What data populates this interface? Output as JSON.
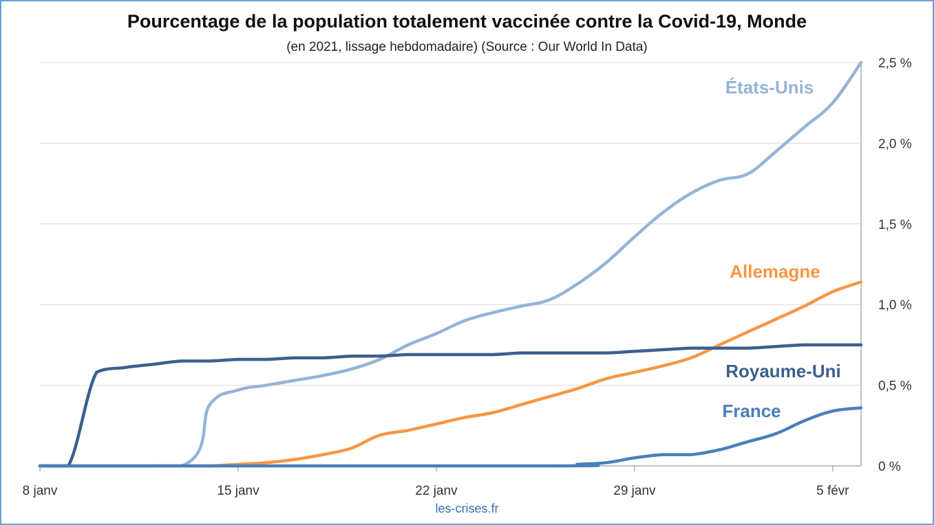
{
  "chart_data": {
    "type": "line",
    "title": "Pourcentage de la population totalement vaccinée contre la Covid-19, Monde",
    "subtitle": "(en 2021, lissage hebdomadaire) (Source : Our World In Data)",
    "source_footer": "les-crises.fr",
    "x_ticks": [
      "8 janv",
      "15 janv",
      "22 janv",
      "29 janv",
      "5 févr"
    ],
    "y_ticks": [
      "0 %",
      "0,5 %",
      "1,0 %",
      "1,5 %",
      "2,0 %",
      "2,5 %"
    ],
    "xlim": [
      "2021-01-08",
      "2021-02-06"
    ],
    "ylim": [
      0,
      2.5
    ],
    "grid": "horizontal",
    "y_axis_side": "right",
    "series": [
      {
        "name": "États-Unis",
        "color": "#95b3d7",
        "points": [
          [
            "2021-01-08",
            0
          ],
          [
            "2021-01-13",
            0
          ],
          [
            "2021-01-14",
            0.38
          ],
          [
            "2021-01-15",
            0.47
          ],
          [
            "2021-01-16",
            0.5
          ],
          [
            "2021-01-17",
            0.53
          ],
          [
            "2021-01-18",
            0.56
          ],
          [
            "2021-01-19",
            0.6
          ],
          [
            "2021-01-20",
            0.66
          ],
          [
            "2021-01-21",
            0.75
          ],
          [
            "2021-01-22",
            0.82
          ],
          [
            "2021-01-23",
            0.9
          ],
          [
            "2021-01-24",
            0.95
          ],
          [
            "2021-01-25",
            0.99
          ],
          [
            "2021-01-26",
            1.03
          ],
          [
            "2021-01-27",
            1.13
          ],
          [
            "2021-01-28",
            1.26
          ],
          [
            "2021-01-29",
            1.42
          ],
          [
            "2021-01-30",
            1.57
          ],
          [
            "2021-01-31",
            1.69
          ],
          [
            "2021-02-01",
            1.77
          ],
          [
            "2021-02-02",
            1.81
          ],
          [
            "2021-02-03",
            1.95
          ],
          [
            "2021-02-04",
            2.1
          ],
          [
            "2021-02-05",
            2.25
          ],
          [
            "2021-02-06",
            2.5
          ]
        ]
      },
      {
        "name": "Allemagne",
        "color": "#f79646",
        "points": [
          [
            "2021-01-12",
            0
          ],
          [
            "2021-01-13",
            0
          ],
          [
            "2021-01-14",
            0
          ],
          [
            "2021-01-15",
            0.01
          ],
          [
            "2021-01-16",
            0.02
          ],
          [
            "2021-01-17",
            0.04
          ],
          [
            "2021-01-18",
            0.07
          ],
          [
            "2021-01-19",
            0.11
          ],
          [
            "2021-01-20",
            0.19
          ],
          [
            "2021-01-21",
            0.22
          ],
          [
            "2021-01-22",
            0.26
          ],
          [
            "2021-01-23",
            0.3
          ],
          [
            "2021-01-24",
            0.33
          ],
          [
            "2021-01-25",
            0.38
          ],
          [
            "2021-01-26",
            0.43
          ],
          [
            "2021-01-27",
            0.48
          ],
          [
            "2021-01-28",
            0.54
          ],
          [
            "2021-01-29",
            0.58
          ],
          [
            "2021-01-30",
            0.62
          ],
          [
            "2021-01-31",
            0.67
          ],
          [
            "2021-02-01",
            0.75
          ],
          [
            "2021-02-02",
            0.83
          ],
          [
            "2021-02-03",
            0.91
          ],
          [
            "2021-02-04",
            0.99
          ],
          [
            "2021-02-05",
            1.08
          ],
          [
            "2021-02-06",
            1.14
          ]
        ]
      },
      {
        "name": "Royaume-Uni",
        "color": "#3b5f8f",
        "points": [
          [
            "2021-01-08",
            0
          ],
          [
            "2021-01-09",
            0
          ],
          [
            "2021-01-10",
            0.58
          ],
          [
            "2021-01-11",
            0.61
          ],
          [
            "2021-01-12",
            0.63
          ],
          [
            "2021-01-13",
            0.65
          ],
          [
            "2021-01-14",
            0.65
          ],
          [
            "2021-01-15",
            0.66
          ],
          [
            "2021-01-16",
            0.66
          ],
          [
            "2021-01-17",
            0.67
          ],
          [
            "2021-01-18",
            0.67
          ],
          [
            "2021-01-19",
            0.68
          ],
          [
            "2021-01-20",
            0.68
          ],
          [
            "2021-01-21",
            0.69
          ],
          [
            "2021-01-22",
            0.69
          ],
          [
            "2021-01-23",
            0.69
          ],
          [
            "2021-01-24",
            0.69
          ],
          [
            "2021-01-25",
            0.7
          ],
          [
            "2021-01-26",
            0.7
          ],
          [
            "2021-01-27",
            0.7
          ],
          [
            "2021-01-28",
            0.7
          ],
          [
            "2021-01-29",
            0.71
          ],
          [
            "2021-01-30",
            0.72
          ],
          [
            "2021-01-31",
            0.73
          ],
          [
            "2021-02-01",
            0.73
          ],
          [
            "2021-02-02",
            0.73
          ],
          [
            "2021-02-03",
            0.74
          ],
          [
            "2021-02-04",
            0.75
          ],
          [
            "2021-02-05",
            0.75
          ],
          [
            "2021-02-06",
            0.75
          ]
        ]
      },
      {
        "name": "France",
        "color": "#4a7ebb",
        "points": [
          [
            "2021-01-08",
            0
          ],
          [
            "2021-01-26",
            0
          ],
          [
            "2021-01-27",
            0.01
          ],
          [
            "2021-01-28",
            0.02
          ],
          [
            "2021-01-29",
            0.05
          ],
          [
            "2021-01-30",
            0.07
          ],
          [
            "2021-01-31",
            0.07
          ],
          [
            "2021-02-01",
            0.1
          ],
          [
            "2021-02-02",
            0.15
          ],
          [
            "2021-02-03",
            0.2
          ],
          [
            "2021-02-04",
            0.28
          ],
          [
            "2021-02-05",
            0.34
          ],
          [
            "2021-02-06",
            0.36
          ]
        ]
      }
    ]
  }
}
